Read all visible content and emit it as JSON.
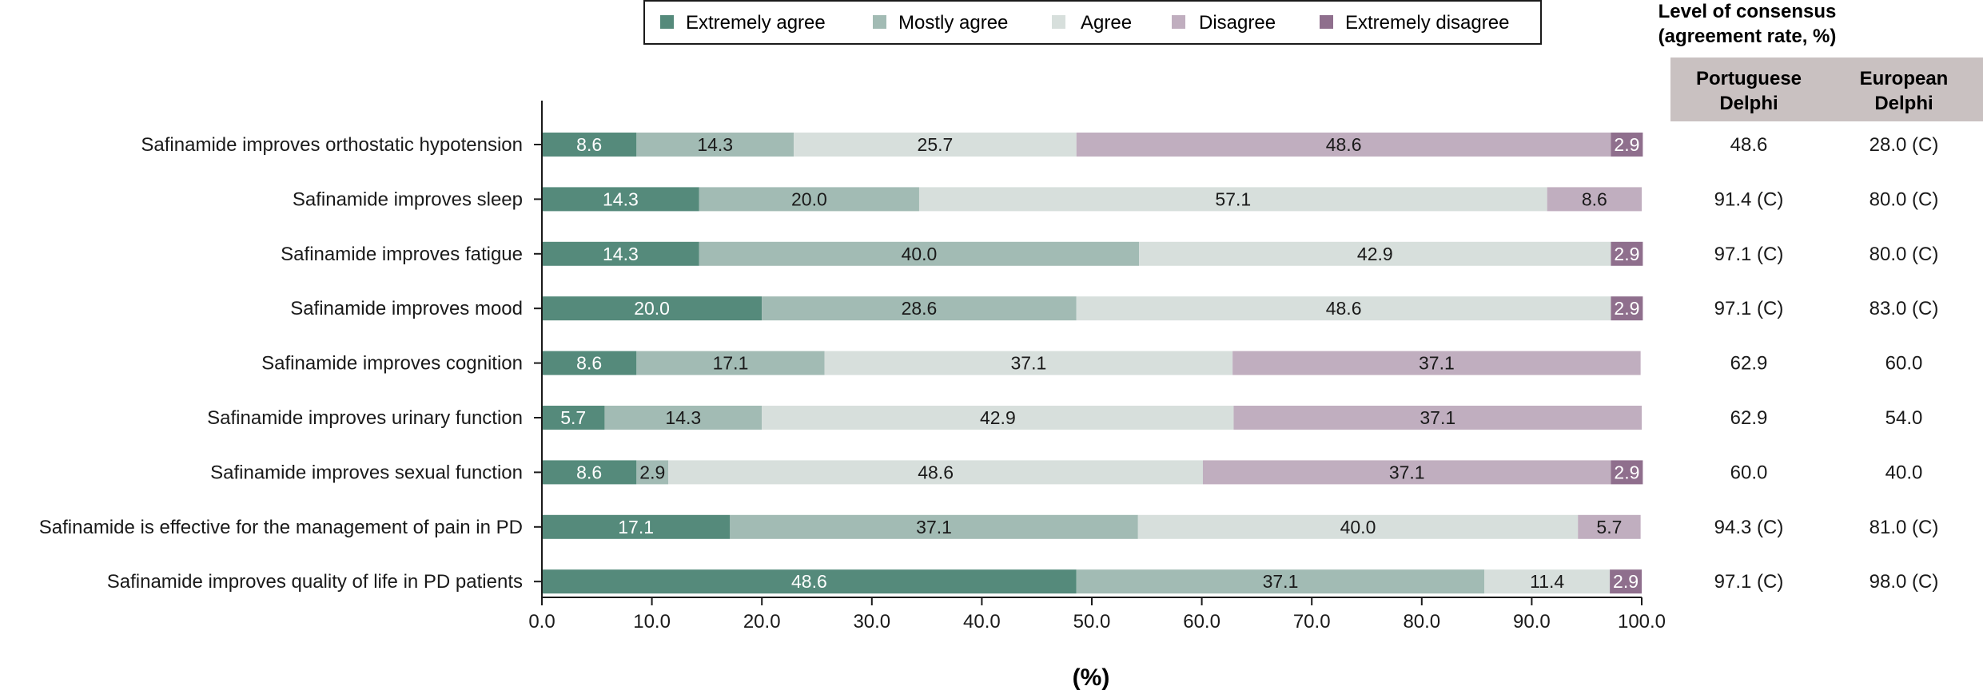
{
  "chart_data": {
    "type": "bar",
    "orientation": "horizontal",
    "stacked": true,
    "title": "",
    "xlabel": "(%)",
    "ylabel": "",
    "xlim": [
      0,
      100
    ],
    "x_ticks": [
      "0.0",
      "10.0",
      "20.0",
      "30.0",
      "40.0",
      "50.0",
      "60.0",
      "70.0",
      "80.0",
      "90.0",
      "100.0"
    ],
    "grid": false,
    "legend_position": "top",
    "categories": [
      "Safinamide improves orthostatic hypotension",
      "Safinamide improves sleep",
      "Safinamide improves fatigue",
      "Safinamide improves mood",
      "Safinamide improves cognition",
      "Safinamide improves urinary function",
      "Safinamide improves sexual function",
      "Safinamide is effective for the management of pain in PD",
      "Safinamide improves quality of life in PD patients"
    ],
    "series": [
      {
        "name": "Extremely agree",
        "color": "#558a7b",
        "label_color": "#ffffff",
        "values": [
          8.6,
          14.3,
          14.3,
          20.0,
          8.6,
          5.7,
          8.6,
          17.1,
          48.6
        ],
        "labels": [
          "8.6",
          "14.3",
          "14.3",
          "20.0",
          "8.6",
          "5.7",
          "8.6",
          "17.1",
          "48.6"
        ]
      },
      {
        "name": "Mostly agree",
        "color": "#a2bbb4",
        "label_color": "#1a1a1a",
        "values": [
          14.3,
          20.0,
          40.0,
          28.6,
          17.1,
          14.3,
          2.9,
          37.1,
          37.1
        ],
        "labels": [
          "14.3",
          "20.0",
          "40.0",
          "28.6",
          "17.1",
          "14.3",
          "2.9",
          "37.1",
          "37.1"
        ]
      },
      {
        "name": "Agree",
        "color": "#d7dfdc",
        "label_color": "#1a1a1a",
        "values": [
          25.7,
          57.1,
          42.9,
          48.6,
          37.1,
          42.9,
          48.6,
          40.0,
          11.4
        ],
        "labels": [
          "25.7",
          "57.1",
          "42.9",
          "48.6",
          "37.1",
          "42.9",
          "48.6",
          "40.0",
          "11.4"
        ]
      },
      {
        "name": "Disagree",
        "color": "#c0aebf",
        "label_color": "#1a1a1a",
        "values": [
          48.6,
          8.6,
          0,
          0,
          37.1,
          37.1,
          37.1,
          5.7,
          0
        ],
        "labels": [
          "48.6",
          "8.6",
          "",
          "",
          "37.1",
          "37.1",
          "37.1",
          "5.7",
          ""
        ]
      },
      {
        "name": "Extremely disagree",
        "color": "#8f6f8d",
        "label_color": "#ffffff",
        "values": [
          2.9,
          0,
          2.9,
          2.9,
          0,
          0,
          2.9,
          0,
          2.9
        ],
        "labels": [
          "2.9",
          "",
          "2.9",
          "2.9",
          "",
          "",
          "2.9",
          "",
          "2.9"
        ]
      }
    ]
  },
  "consensus_table": {
    "title_line1": "Level of consensus",
    "title_line2": "(agreement rate, %)",
    "header_color": "#c9c1c1",
    "columns": [
      {
        "header_line1": "Portuguese",
        "header_line2": "Delphi",
        "values": [
          "48.6",
          "91.4 (C)",
          "97.1 (C)",
          "97.1 (C)",
          "62.9",
          "62.9",
          "60.0",
          "94.3 (C)",
          "97.1 (C)"
        ]
      },
      {
        "header_line1": "European",
        "header_line2": "Delphi",
        "values": [
          "28.0 (C)",
          "80.0 (C)",
          "80.0 (C)",
          "83.0 (C)",
          "60.0",
          "54.0",
          "40.0",
          "81.0 (C)",
          "98.0 (C)"
        ]
      }
    ]
  }
}
